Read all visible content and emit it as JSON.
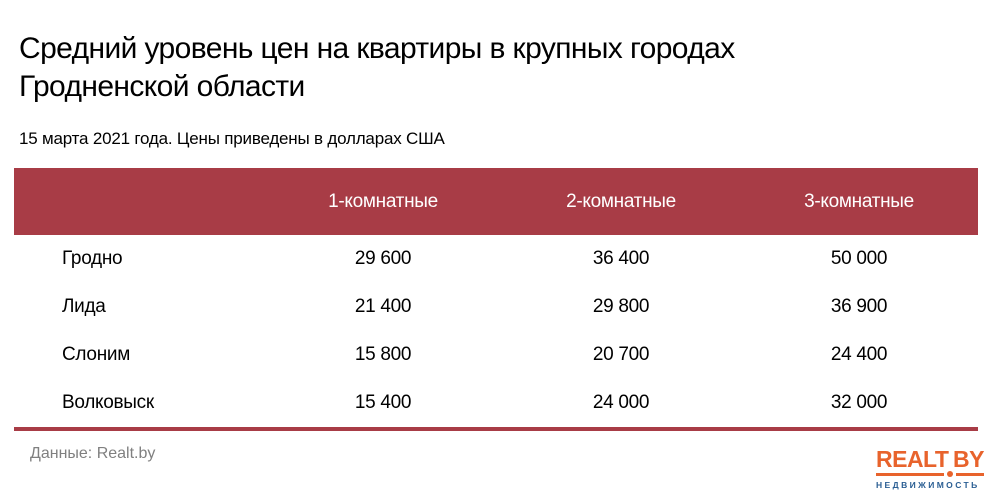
{
  "page": {
    "title_lines": [
      "Средний уровень цен на квартиры в крупных городах",
      "Гродненской области"
    ],
    "subtitle": "15 марта 2021 года. Цены приведены в долларах США"
  },
  "table": {
    "header": {
      "city_label": "",
      "columns": [
        "1-комнатные",
        "2-комнатные",
        "3-комнатные"
      ]
    },
    "rows": [
      {
        "city": "Гродно",
        "values": [
          "29 600",
          "36 400",
          "50 000"
        ]
      },
      {
        "city": "Лида",
        "values": [
          "21 400",
          "29 800",
          "36 900"
        ]
      },
      {
        "city": "Слоним",
        "values": [
          "15 800",
          "20 700",
          "24 400"
        ]
      },
      {
        "city": "Волковыск",
        "values": [
          "15 400",
          "24 000",
          "32 000"
        ]
      }
    ]
  },
  "footer": {
    "source": "Данные: Realt.by",
    "logo": {
      "realt": "REALT",
      "by": "BY",
      "tagline": "НЕДВИЖИМОСТЬ"
    }
  },
  "colors": {
    "header_bg": "#a83c46",
    "accent_line": "#a83c46",
    "title_text": "#000000",
    "header_text": "#ffffff",
    "source_text": "#808080",
    "logo_orange": "#e8632c",
    "logo_blue": "#2a5e93",
    "background": "#ffffff"
  },
  "chart_data": {
    "type": "table",
    "title": "Средний уровень цен на квартиры в крупных городах Гродненской области",
    "subtitle": "15 марта 2021 года. Цены приведены в долларах США",
    "columns": [
      "1-комнатные",
      "2-комнатные",
      "3-комнатные"
    ],
    "categories": [
      "Гродно",
      "Лида",
      "Слоним",
      "Волковыск"
    ],
    "series": [
      {
        "name": "1-комнатные",
        "values": [
          29600,
          21400,
          15800,
          15400
        ]
      },
      {
        "name": "2-комнатные",
        "values": [
          36400,
          29800,
          20700,
          24000
        ]
      },
      {
        "name": "3-комнатные",
        "values": [
          50000,
          36900,
          24400,
          32000
        ]
      }
    ],
    "unit": "USD",
    "source": "Realt.by",
    "legend_position": "none",
    "grid": false
  }
}
